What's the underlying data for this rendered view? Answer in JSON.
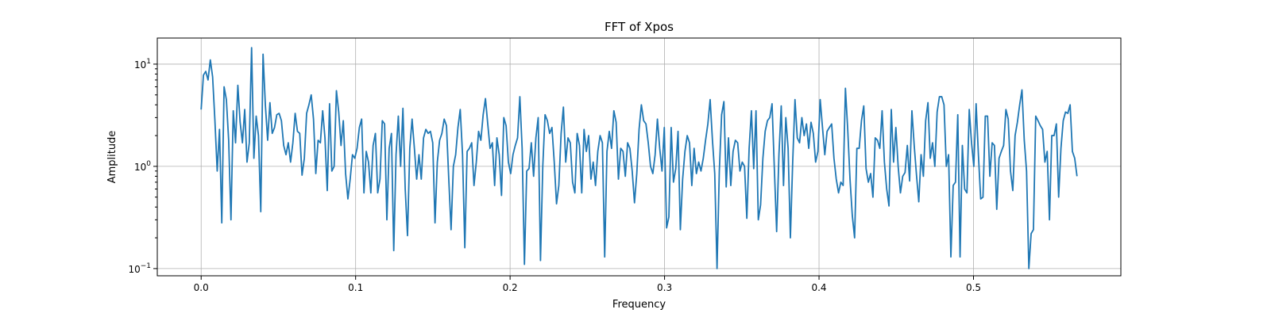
{
  "chart_data": {
    "type": "line",
    "title": "FFT of Xpos",
    "xlabel": "Frequency",
    "ylabel": "Amplitude",
    "yscale": "log",
    "xlim": [
      -0.0284,
      0.5954
    ],
    "ylim": [
      0.085,
      18
    ],
    "grid": true,
    "x_ticks": [
      {
        "value": 0.0,
        "label": "0.0"
      },
      {
        "value": 0.1,
        "label": "0.1"
      },
      {
        "value": 0.2,
        "label": "0.2"
      },
      {
        "value": 0.3,
        "label": "0.3"
      },
      {
        "value": 0.4,
        "label": "0.4"
      },
      {
        "value": 0.5,
        "label": "0.5"
      }
    ],
    "y_ticks": [
      {
        "value": 0.1,
        "base": "10",
        "exp": "−1"
      },
      {
        "value": 1,
        "base": "10",
        "exp": "0"
      },
      {
        "value": 10,
        "base": "10",
        "exp": "1"
      }
    ],
    "series": [
      {
        "color": "#1f77b4",
        "x_start": 0.0,
        "x_end": 0.567,
        "values": [
          3.6,
          7.8,
          8.5,
          7,
          11,
          7.5,
          2.8,
          0.9,
          2.3,
          0.28,
          6,
          4.5,
          1.8,
          0.3,
          3.5,
          1.7,
          6.2,
          2.7,
          1.7,
          3.6,
          1.1,
          1.7,
          14.5,
          1.2,
          3.1,
          2,
          0.36,
          12.5,
          4,
          1.8,
          4.2,
          2.1,
          2.4,
          3.2,
          3.3,
          2.8,
          1.6,
          1.3,
          1.7,
          1.1,
          1.7,
          3.3,
          2.2,
          2.1,
          0.82,
          1.2,
          3.3,
          4,
          5,
          2.9,
          0.85,
          1.8,
          1.7,
          3.5,
          1.9,
          0.58,
          4.1,
          0.9,
          1,
          5.5,
          3.4,
          1.6,
          2.8,
          0.85,
          0.48,
          0.75,
          1.3,
          1.2,
          1.5,
          2.4,
          2.9,
          0.55,
          1.4,
          1.1,
          0.55,
          1.6,
          2.1,
          0.55,
          0.75,
          2.8,
          2.6,
          0.3,
          1.5,
          2.1,
          0.15,
          1.3,
          3.1,
          1,
          3.7,
          0.6,
          0.21,
          1.5,
          2.9,
          1.5,
          0.75,
          1.3,
          0.75,
          1.9,
          2.3,
          2.1,
          2.2,
          1.7,
          0.28,
          1.1,
          1.8,
          2.1,
          2.9,
          2.5,
          0.75,
          0.24,
          1,
          1.3,
          2.4,
          3.6,
          1.3,
          0.16,
          1.4,
          1.5,
          1.7,
          0.65,
          1.1,
          2.2,
          1.8,
          3.2,
          4.6,
          2.6,
          1.5,
          1.7,
          0.65,
          1.9,
          1.3,
          0.52,
          3,
          2.5,
          1.1,
          0.85,
          1.3,
          1.6,
          1.9,
          4.8,
          1.5,
          0.11,
          0.9,
          0.95,
          1.7,
          0.8,
          1.9,
          3,
          0.12,
          1,
          3.2,
          2.8,
          2.1,
          2.4,
          1.1,
          0.43,
          0.65,
          2.1,
          3.8,
          1.1,
          1.9,
          1.7,
          0.7,
          0.55,
          2.1,
          1.6,
          0.55,
          2.3,
          1.4,
          2,
          0.75,
          1.1,
          0.65,
          1.4,
          2,
          1.7,
          0.13,
          1.4,
          2.2,
          1.5,
          3.5,
          2.7,
          0.75,
          1.5,
          1.4,
          0.8,
          1.7,
          1.5,
          0.9,
          0.44,
          0.85,
          2.3,
          4,
          2.8,
          2.6,
          1.7,
          1,
          0.85,
          1.3,
          2.9,
          1.5,
          0.9,
          2.4,
          0.25,
          0.32,
          2.4,
          0.7,
          0.95,
          2.2,
          0.24,
          0.75,
          1.4,
          2,
          1.7,
          0.65,
          1.5,
          0.85,
          1.1,
          0.9,
          1.2,
          1.8,
          2.6,
          4.5,
          1.8,
          0.85,
          0.1,
          0.9,
          3.2,
          4.3,
          0.63,
          1.9,
          0.65,
          1.4,
          1.8,
          1.7,
          0.9,
          1.1,
          1,
          0.31,
          1.5,
          3.5,
          0.95,
          3.5,
          0.3,
          0.42,
          1.2,
          2.2,
          2.8,
          3,
          4.1,
          0.95,
          0.23,
          1.3,
          3.9,
          0.65,
          3,
          1.5,
          0.2,
          1.1,
          4.5,
          1.9,
          1.7,
          3,
          2,
          2.6,
          1.5,
          2.7,
          2.1,
          1.1,
          1.4,
          4.5,
          2.4,
          1.3,
          2.2,
          2.4,
          2.6,
          1.2,
          0.75,
          0.55,
          0.7,
          0.65,
          5.8,
          2.3,
          0.75,
          0.33,
          0.2,
          1.5,
          1.5,
          2.8,
          3.9,
          0.95,
          0.7,
          0.85,
          0.5,
          1.9,
          1.8,
          1.5,
          3.5,
          1.1,
          0.6,
          0.41,
          3.6,
          1.1,
          2.4,
          1,
          0.55,
          0.8,
          0.87,
          1.6,
          0.72,
          3.5,
          1.6,
          0.82,
          0.45,
          1.3,
          0.8,
          2.8,
          4.2,
          1.2,
          1.7,
          1,
          3.4,
          4.8,
          4.8,
          4,
          1,
          1.3,
          0.13,
          0.65,
          0.7,
          3.2,
          0.13,
          1.6,
          0.6,
          0.55,
          3.6,
          1.7,
          1,
          4.1,
          1.3,
          0.48,
          0.5,
          3.1,
          3.1,
          0.8,
          1.7,
          1.6,
          0.38,
          1.2,
          1.4,
          1.6,
          3.6,
          2.9,
          0.9,
          0.58,
          2,
          2.7,
          4,
          5.6,
          1.8,
          0.9,
          0.1,
          0.22,
          0.24,
          3.1,
          2.8,
          2.5,
          2.3,
          1.1,
          1.4,
          0.3,
          2,
          2,
          2.6,
          0.5,
          1.5,
          2.8,
          3.4,
          3.3,
          4,
          1.4,
          1.2,
          0.8
        ]
      }
    ]
  }
}
